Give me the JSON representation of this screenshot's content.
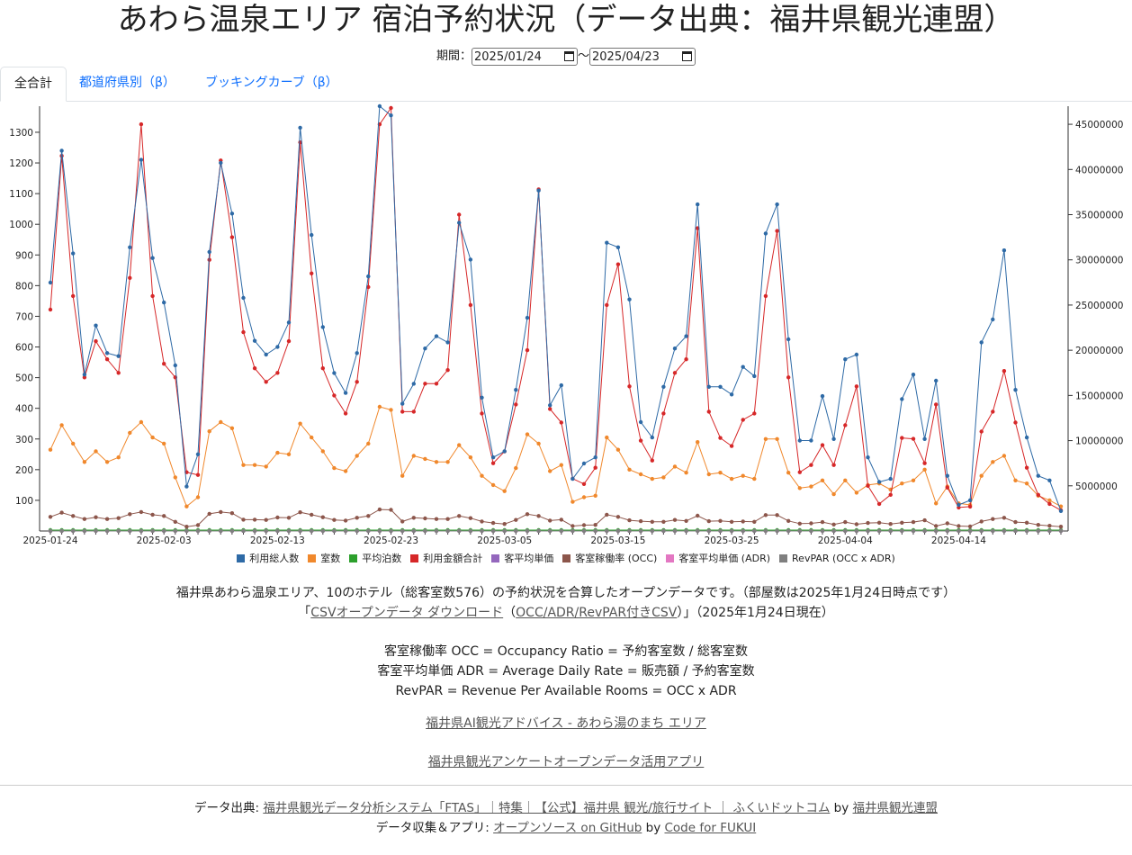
{
  "page_title": "あわら温泉エリア 宿泊予約状況（データ出典：福井県観光連盟）",
  "period": {
    "label": "期間：",
    "start": "2025/01/24",
    "separator": "〜",
    "end": "2025/04/23"
  },
  "tabs": [
    {
      "label": "全合計",
      "active": true
    },
    {
      "label": "都道府県別（β）",
      "active": false
    },
    {
      "label": "ブッキングカーブ（β）",
      "active": false
    }
  ],
  "legend": [
    {
      "label": "利用総人数",
      "color": "#2e6aa6"
    },
    {
      "label": "室数",
      "color": "#f0882c"
    },
    {
      "label": "平均泊数",
      "color": "#2ca02c"
    },
    {
      "label": "利用金額合計",
      "color": "#d62728"
    },
    {
      "label": "客平均単価",
      "color": "#9467bd"
    },
    {
      "label": "客室稼働率 (OCC)",
      "color": "#8c564b"
    },
    {
      "label": "客室平均単価 (ADR)",
      "color": "#e377c2"
    },
    {
      "label": "RevPAR (OCC x ADR)",
      "color": "#7f7f7f"
    }
  ],
  "chart_data": {
    "type": "line",
    "x_start": "2025-01-24",
    "x_end": "2025-04-23",
    "x_tick_labels": [
      "2025-01-24",
      "2025-02-03",
      "2025-02-13",
      "2025-02-23",
      "2025-03-05",
      "2025-03-15",
      "2025-03-25",
      "2025-04-04",
      "2025-04-14"
    ],
    "y_left_ticks": [
      100,
      200,
      300,
      400,
      500,
      600,
      700,
      800,
      900,
      1000,
      1100,
      1200,
      1300
    ],
    "y_left_range": [
      0,
      1385
    ],
    "y_right_ticks": [
      5000000,
      10000000,
      15000000,
      20000000,
      25000000,
      30000000,
      35000000,
      40000000,
      45000000
    ],
    "y_right_range": [
      0,
      47000000
    ],
    "series": [
      {
        "name": "利用総人数",
        "axis": "left",
        "color": "#2e6aa6",
        "values": [
          810,
          1240,
          905,
          510,
          670,
          580,
          570,
          925,
          1210,
          890,
          745,
          540,
          145,
          250,
          910,
          1200,
          1035,
          760,
          620,
          575,
          600,
          680,
          1315,
          965,
          665,
          515,
          450,
          580,
          830,
          1385,
          1355,
          415,
          480,
          595,
          635,
          615,
          1005,
          885,
          435,
          240,
          260,
          460,
          695,
          1110,
          410,
          475,
          170,
          220,
          240,
          940,
          925,
          755,
          355,
          305,
          470,
          595,
          635,
          1065,
          470,
          470,
          445,
          535,
          505,
          970,
          1065,
          625,
          295,
          295,
          440,
          300,
          560,
          575,
          240,
          160,
          170,
          430,
          510,
          300,
          490,
          180,
          85,
          100,
          615,
          690,
          915,
          460,
          305,
          180,
          165,
          65
        ]
      },
      {
        "name": "室数",
        "axis": "left",
        "color": "#f0882c",
        "values": [
          265,
          345,
          285,
          225,
          260,
          225,
          240,
          320,
          355,
          305,
          285,
          175,
          80,
          110,
          325,
          355,
          335,
          215,
          215,
          210,
          255,
          250,
          350,
          305,
          260,
          205,
          195,
          245,
          285,
          405,
          395,
          180,
          245,
          235,
          225,
          225,
          280,
          240,
          180,
          150,
          130,
          205,
          315,
          285,
          195,
          215,
          95,
          110,
          115,
          305,
          265,
          200,
          185,
          170,
          175,
          210,
          190,
          290,
          185,
          190,
          170,
          180,
          170,
          300,
          300,
          190,
          140,
          145,
          165,
          120,
          165,
          125,
          150,
          155,
          135,
          155,
          165,
          200,
          90,
          145,
          90,
          85,
          180,
          225,
          245,
          165,
          155,
          115,
          100,
          80
        ]
      },
      {
        "name": "平均泊数",
        "axis": "left",
        "color": "#2ca02c",
        "values": [
          3,
          3,
          3,
          3,
          3,
          3,
          3,
          3,
          3,
          3,
          3,
          3,
          3,
          3,
          3,
          3,
          3,
          3,
          3,
          3,
          3,
          3,
          3,
          3,
          3,
          3,
          3,
          3,
          3,
          3,
          3,
          3,
          3,
          3,
          3,
          3,
          3,
          3,
          3,
          3,
          3,
          3,
          3,
          3,
          3,
          3,
          3,
          3,
          3,
          3,
          3,
          3,
          3,
          3,
          3,
          3,
          3,
          3,
          3,
          3,
          3,
          3,
          3,
          3,
          3,
          3,
          3,
          3,
          3,
          3,
          3,
          3,
          3,
          3,
          3,
          3,
          3,
          3,
          3,
          3,
          3,
          3,
          3,
          3,
          3,
          3,
          3,
          3,
          3,
          3
        ]
      },
      {
        "name": "利用金額合計",
        "axis": "right",
        "color": "#d62728",
        "values": [
          24500000,
          41500000,
          26000000,
          17000000,
          21000000,
          19000000,
          17500000,
          28000000,
          45000000,
          26000000,
          18500000,
          17000000,
          6500000,
          6200000,
          30000000,
          41000000,
          32500000,
          22000000,
          18000000,
          16500000,
          17500000,
          21000000,
          43000000,
          28500000,
          18000000,
          15000000,
          13000000,
          16500000,
          27000000,
          45000000,
          46800000,
          13200000,
          13200000,
          16300000,
          16300000,
          17800000,
          35000000,
          25000000,
          13000000,
          7500000,
          8800000,
          14000000,
          20000000,
          37800000,
          13500000,
          12000000,
          5800000,
          5200000,
          7000000,
          25000000,
          29500000,
          16000000,
          10000000,
          7800000,
          13000000,
          17500000,
          19000000,
          33500000,
          13200000,
          10300000,
          9400000,
          12300000,
          13000000,
          26000000,
          33200000,
          17000000,
          6500000,
          7300000,
          9500000,
          7300000,
          11700000,
          16000000,
          5000000,
          3000000,
          4000000,
          10300000,
          10200000,
          7500000,
          14000000,
          4800000,
          2600000,
          2700000,
          11000000,
          13200000,
          17700000,
          12000000,
          7000000,
          4000000,
          3000000,
          2300000
        ]
      },
      {
        "name": "客平均単価",
        "axis": "left",
        "color": "#9467bd",
        "values": [
          0,
          0,
          0,
          0,
          0,
          0,
          0,
          0,
          0,
          0,
          0,
          0,
          0,
          0,
          0,
          0,
          0,
          0,
          0,
          0,
          0,
          0,
          0,
          0,
          0,
          0,
          0,
          0,
          0,
          0,
          0,
          0,
          0,
          0,
          0,
          0,
          0,
          0,
          0,
          0,
          0,
          0,
          0,
          0,
          0,
          0,
          0,
          0,
          0,
          0,
          0,
          0,
          0,
          0,
          0,
          0,
          0,
          0,
          0,
          0,
          0,
          0,
          0,
          0,
          0,
          0,
          0,
          0,
          0,
          0,
          0,
          0,
          0,
          0,
          0,
          0,
          0,
          0,
          0,
          0,
          0,
          0,
          0,
          0,
          0,
          0,
          0,
          0,
          0,
          0
        ]
      },
      {
        "name": "客室稼働率 (OCC)",
        "axis": "left",
        "color": "#8c564b",
        "values": [
          46,
          60,
          49,
          39,
          45,
          39,
          42,
          55,
          62,
          53,
          49,
          30,
          14,
          19,
          56,
          62,
          58,
          37,
          37,
          36,
          44,
          43,
          61,
          53,
          45,
          36,
          34,
          43,
          49,
          70,
          69,
          31,
          43,
          41,
          39,
          39,
          49,
          42,
          31,
          26,
          23,
          36,
          55,
          49,
          34,
          37,
          16,
          19,
          20,
          53,
          46,
          35,
          32,
          30,
          30,
          36,
          33,
          50,
          32,
          33,
          30,
          31,
          30,
          52,
          52,
          33,
          24,
          25,
          29,
          21,
          29,
          22,
          26,
          27,
          23,
          27,
          29,
          35,
          16,
          25,
          16,
          15,
          31,
          39,
          43,
          29,
          27,
          20,
          17,
          14
        ]
      },
      {
        "name": "客室平均単価 (ADR)",
        "axis": "left",
        "color": "#e377c2",
        "values": [
          0,
          0,
          0,
          0,
          0,
          0,
          0,
          0,
          0,
          0,
          0,
          0,
          0,
          0,
          0,
          0,
          0,
          0,
          0,
          0,
          0,
          0,
          0,
          0,
          0,
          0,
          0,
          0,
          0,
          0,
          0,
          0,
          0,
          0,
          0,
          0,
          0,
          0,
          0,
          0,
          0,
          0,
          0,
          0,
          0,
          0,
          0,
          0,
          0,
          0,
          0,
          0,
          0,
          0,
          0,
          0,
          0,
          0,
          0,
          0,
          0,
          0,
          0,
          0,
          0,
          0,
          0,
          0,
          0,
          0,
          0,
          0,
          0,
          0,
          0,
          0,
          0,
          0,
          0,
          0,
          0,
          0,
          0,
          0,
          0,
          0,
          0,
          0,
          0,
          0
        ]
      },
      {
        "name": "RevPAR (OCC x ADR)",
        "axis": "left",
        "color": "#7f7f7f",
        "values": [
          0,
          0,
          0,
          0,
          0,
          0,
          0,
          0,
          0,
          0,
          0,
          0,
          0,
          0,
          0,
          0,
          0,
          0,
          0,
          0,
          0,
          0,
          0,
          0,
          0,
          0,
          0,
          0,
          0,
          0,
          0,
          0,
          0,
          0,
          0,
          0,
          0,
          0,
          0,
          0,
          0,
          0,
          0,
          0,
          0,
          0,
          0,
          0,
          0,
          0,
          0,
          0,
          0,
          0,
          0,
          0,
          0,
          0,
          0,
          0,
          0,
          0,
          0,
          0,
          0,
          0,
          0,
          0,
          0,
          0,
          0,
          0,
          0,
          0,
          0,
          0,
          0,
          0,
          0,
          0,
          0,
          0,
          0,
          0,
          0,
          0,
          0,
          0,
          0,
          0
        ]
      }
    ]
  },
  "description": {
    "line1": "福井県あわら温泉エリア、10のホテル（総客室数576）の予約状況を合算したオープンデータです。（部屋数は2025年1月24日時点です）",
    "line2_open": "「",
    "csv_link": "CSVオープンデータ ダウンロード",
    "line2_paren_open": "（",
    "csv_occ_link": "OCC/ADR/RevPAR付きCSV",
    "line2_close": "）」（2025年1月24日現在）",
    "def_occ": "客室稼働率 OCC = Occupancy Ratio = 予約客室数 / 総客室数",
    "def_adr": "客室平均単価 ADR = Average Daily Rate = 販売額 / 予約客室数",
    "def_revpar": "RevPAR = Revenue Per Available Rooms = OCC x ADR",
    "link_ai": "福井県AI観光アドバイス - あわら湯のまち エリア",
    "link_survey": "福井県観光アンケートオープンデータ活用アプリ"
  },
  "footer": {
    "source_label": "データ出典: ",
    "source_link": "福井県観光データ分析システム「FTAS」｜特集｜【公式】福井県 観光/旅行サイト ｜ ふくいドットコム",
    "by1": " by ",
    "org_link": "福井県観光連盟",
    "collect_label": "データ収集＆アプリ: ",
    "github_link": "オープンソース on GitHub",
    "by2": " by ",
    "cff_link": "Code for FUKUI"
  }
}
